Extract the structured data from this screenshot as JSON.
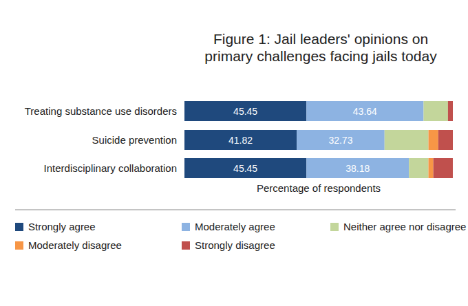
{
  "chart_data": {
    "type": "bar",
    "orientation": "horizontal",
    "stacked": true,
    "title": "Figure 1: Jail leaders' opinions on primary challenges facing jails today",
    "xlabel": "Percentage of respondents",
    "categories": [
      "Treating substance use disorders",
      "Suicide prevention",
      "Interdisciplinary collaboration"
    ],
    "xlim": [
      0,
      100
    ],
    "tick_labels": false,
    "grid": false,
    "legend": "bottom",
    "series": [
      {
        "name": "Strongly agree",
        "color": "#1f497d",
        "values": [
          45.45,
          41.82,
          45.45
        ],
        "data_labels": true
      },
      {
        "name": "Moderately agree",
        "color": "#8db3e2",
        "values": [
          43.64,
          32.73,
          38.18
        ],
        "data_labels": true
      },
      {
        "name": "Neither agree nor disagree",
        "color": "#c3d69b",
        "values": [
          9.09,
          16.36,
          7.27
        ]
      },
      {
        "name": "Moderately disagree",
        "color": "#f79646",
        "values": [
          0,
          3.64,
          1.82
        ]
      },
      {
        "name": "Strongly disagree",
        "color": "#c0504d",
        "values": [
          1.82,
          5.45,
          7.27
        ]
      }
    ]
  }
}
